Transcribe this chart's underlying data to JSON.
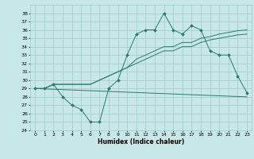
{
  "bg_color": "#c8e8e8",
  "grid_color": "#a0c8c8",
  "line_color": "#2a7a6a",
  "xlabel": "Humidex (Indice chaleur)",
  "ylim": [
    24,
    39
  ],
  "xlim": [
    -0.5,
    23.5
  ],
  "yticks": [
    24,
    25,
    26,
    27,
    28,
    29,
    30,
    31,
    32,
    33,
    34,
    35,
    36,
    37,
    38
  ],
  "xticks": [
    0,
    1,
    2,
    3,
    4,
    5,
    6,
    7,
    8,
    9,
    10,
    11,
    12,
    13,
    14,
    15,
    16,
    17,
    18,
    19,
    20,
    21,
    22,
    23
  ],
  "series1_x": [
    0,
    1,
    2,
    3,
    4,
    5,
    6,
    7,
    8,
    9,
    10,
    11,
    12,
    13,
    14,
    15,
    16,
    17,
    18,
    19,
    20,
    21,
    22,
    23
  ],
  "series1_y": [
    29,
    29,
    29.5,
    28,
    27,
    26.5,
    25,
    25,
    29,
    30,
    33,
    35.5,
    36,
    36,
    38,
    36,
    35.5,
    36.5,
    36,
    33.5,
    33,
    33,
    30.5,
    28.5
  ],
  "series2_x": [
    0,
    23
  ],
  "series2_y": [
    29,
    28
  ],
  "series3_x": [
    0,
    1,
    2,
    3,
    4,
    5,
    6,
    7,
    8,
    9,
    10,
    11,
    12,
    13,
    14,
    15,
    16,
    17,
    18,
    19,
    20,
    21,
    22,
    23
  ],
  "series3_y": [
    29,
    29,
    29.5,
    29.5,
    29.5,
    29.5,
    29.5,
    30,
    30.5,
    31,
    31.5,
    32,
    32.5,
    33,
    33.5,
    33.5,
    34,
    34,
    34.5,
    34.8,
    35,
    35.2,
    35.4,
    35.5
  ],
  "series4_x": [
    0,
    1,
    2,
    3,
    4,
    5,
    6,
    7,
    8,
    9,
    10,
    11,
    12,
    13,
    14,
    15,
    16,
    17,
    18,
    19,
    20,
    21,
    22,
    23
  ],
  "series4_y": [
    29,
    29,
    29.5,
    29.5,
    29.5,
    29.5,
    29.5,
    30,
    30.5,
    31,
    31.5,
    32.5,
    33,
    33.5,
    34,
    34,
    34.5,
    34.5,
    35,
    35.2,
    35.5,
    35.7,
    35.9,
    36
  ],
  "figsize": [
    3.2,
    2.0
  ],
  "dpi": 100
}
